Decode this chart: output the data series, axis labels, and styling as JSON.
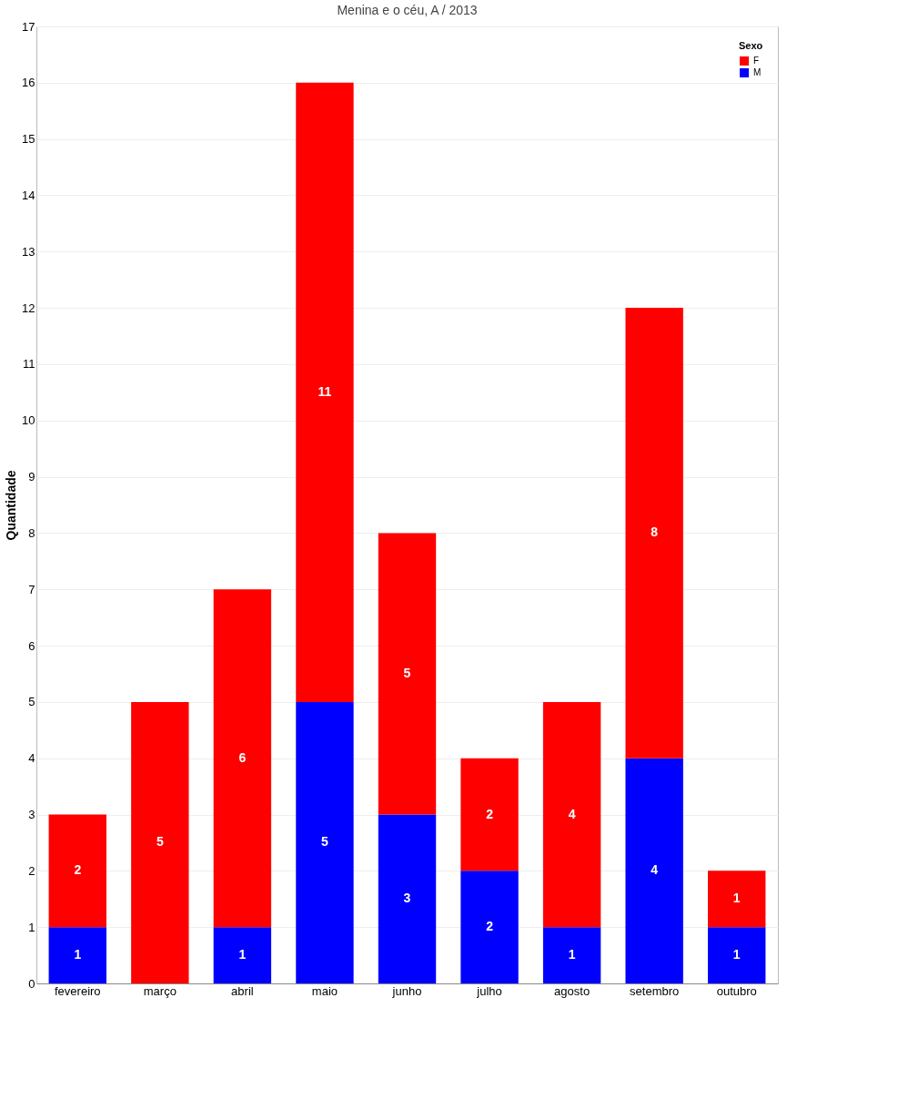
{
  "chart_data": {
    "type": "bar",
    "title": "Menina e o céu, A / 2013",
    "ylabel": "Quantidade",
    "legend_title": "Sexo",
    "categories": [
      "fevereiro",
      "março",
      "abril",
      "maio",
      "junho",
      "julho",
      "agosto",
      "setembro",
      "outubro"
    ],
    "stacked": true,
    "series": [
      {
        "name": "M",
        "color": "#0000ff",
        "values": [
          1,
          0,
          1,
          5,
          3,
          2,
          1,
          4,
          1
        ],
        "value_labels": [
          "1",
          null,
          "1",
          "5",
          "3",
          "2",
          "1",
          "4",
          "1"
        ]
      },
      {
        "name": "F",
        "color": "#ff0000",
        "values": [
          2,
          5,
          6,
          11,
          5,
          2,
          4,
          8,
          1
        ],
        "value_labels": [
          "2",
          "5",
          "6",
          "11",
          "5",
          "2",
          "4",
          "8",
          "1"
        ]
      }
    ],
    "ylim": [
      0,
      17
    ],
    "yticks": [
      0,
      1,
      2,
      3,
      4,
      5,
      6,
      7,
      8,
      9,
      10,
      11,
      12,
      13,
      14,
      15,
      16,
      17
    ],
    "grid": "y",
    "legend": "top right"
  }
}
